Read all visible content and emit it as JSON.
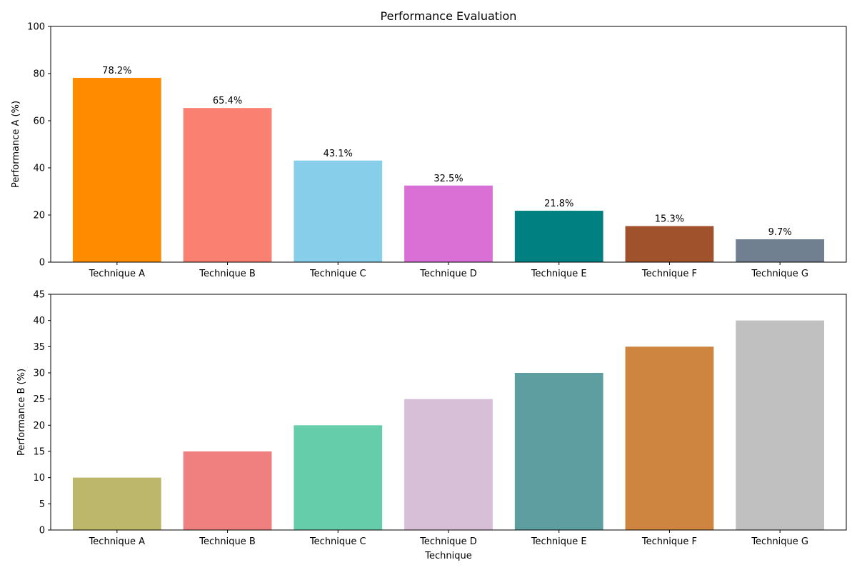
{
  "chart_data": [
    {
      "type": "bar",
      "title": "Performance Evaluation",
      "xlabel": "",
      "ylabel": "Performance A (%)",
      "categories": [
        "Technique A",
        "Technique B",
        "Technique C",
        "Technique D",
        "Technique E",
        "Technique F",
        "Technique G"
      ],
      "values": [
        78.2,
        65.4,
        43.1,
        32.5,
        21.8,
        15.3,
        9.7
      ],
      "data_labels": [
        "78.2%",
        "65.4%",
        "43.1%",
        "32.5%",
        "21.8%",
        "15.3%",
        "9.7%"
      ],
      "colors": [
        "#ff8c00",
        "#fa8072",
        "#87ceeb",
        "#da70d6",
        "#008080",
        "#a0522d",
        "#708090"
      ],
      "ylim": [
        0,
        100
      ],
      "yticks": [
        0,
        20,
        40,
        60,
        80,
        100
      ],
      "grid": false
    },
    {
      "type": "bar",
      "title": "",
      "xlabel": "Technique",
      "ylabel": "Performance B (%)",
      "categories": [
        "Technique A",
        "Technique B",
        "Technique C",
        "Technique D",
        "Technique E",
        "Technique F",
        "Technique G"
      ],
      "values": [
        10,
        15,
        20,
        25,
        30,
        35,
        40
      ],
      "colors": [
        "#bdb76b",
        "#f08080",
        "#66cdaa",
        "#d8bfd8",
        "#5f9ea0",
        "#cd853f",
        "#c0c0c0"
      ],
      "ylim": [
        0,
        45
      ],
      "yticks": [
        0,
        5,
        10,
        15,
        20,
        25,
        30,
        35,
        40,
        45
      ],
      "grid": false
    }
  ]
}
